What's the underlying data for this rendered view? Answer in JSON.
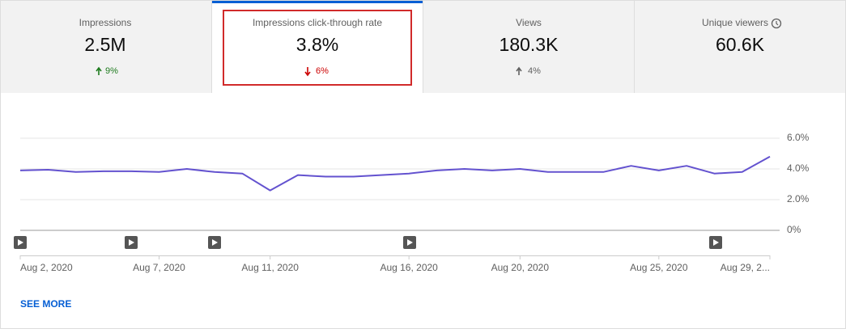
{
  "tabs": [
    {
      "label": "Impressions",
      "value": "2.5M",
      "change": "9%"
    },
    {
      "label": "Impressions click-through rate",
      "value": "3.8%",
      "change": "6%"
    },
    {
      "label": "Views",
      "value": "180.3K",
      "change": "4%"
    },
    {
      "label": "Unique viewers",
      "value": "60.6K"
    }
  ],
  "chart_data": {
    "type": "line",
    "categories": [
      "Aug 2, 2020",
      null,
      null,
      null,
      null,
      "Aug 7, 2020",
      null,
      null,
      null,
      "Aug 11, 2020",
      null,
      null,
      null,
      null,
      "Aug 16, 2020",
      null,
      null,
      null,
      "Aug 20, 2020",
      null,
      null,
      null,
      null,
      "Aug 25, 2020",
      null,
      null,
      null,
      "Aug 29, 2..."
    ],
    "series": [
      {
        "color": "#6352cf",
        "values": [
          3.9,
          3.95,
          3.8,
          3.85,
          3.85,
          3.8,
          4.0,
          3.8,
          3.7,
          2.6,
          3.6,
          3.5,
          3.5,
          3.6,
          3.7,
          3.9,
          4.0,
          3.9,
          4.0,
          3.8,
          3.8,
          3.8,
          4.2,
          3.9,
          4.2,
          3.7,
          3.8,
          4.8
        ]
      }
    ],
    "ylim": [
      0,
      6
    ],
    "yticks": [
      {
        "value": 0,
        "label": "0%"
      },
      {
        "value": 2,
        "label": "2.0%"
      },
      {
        "value": 4,
        "label": "4.0%"
      },
      {
        "value": 6,
        "label": "6.0%"
      }
    ],
    "grid": true
  },
  "see_more": "SEE MORE"
}
